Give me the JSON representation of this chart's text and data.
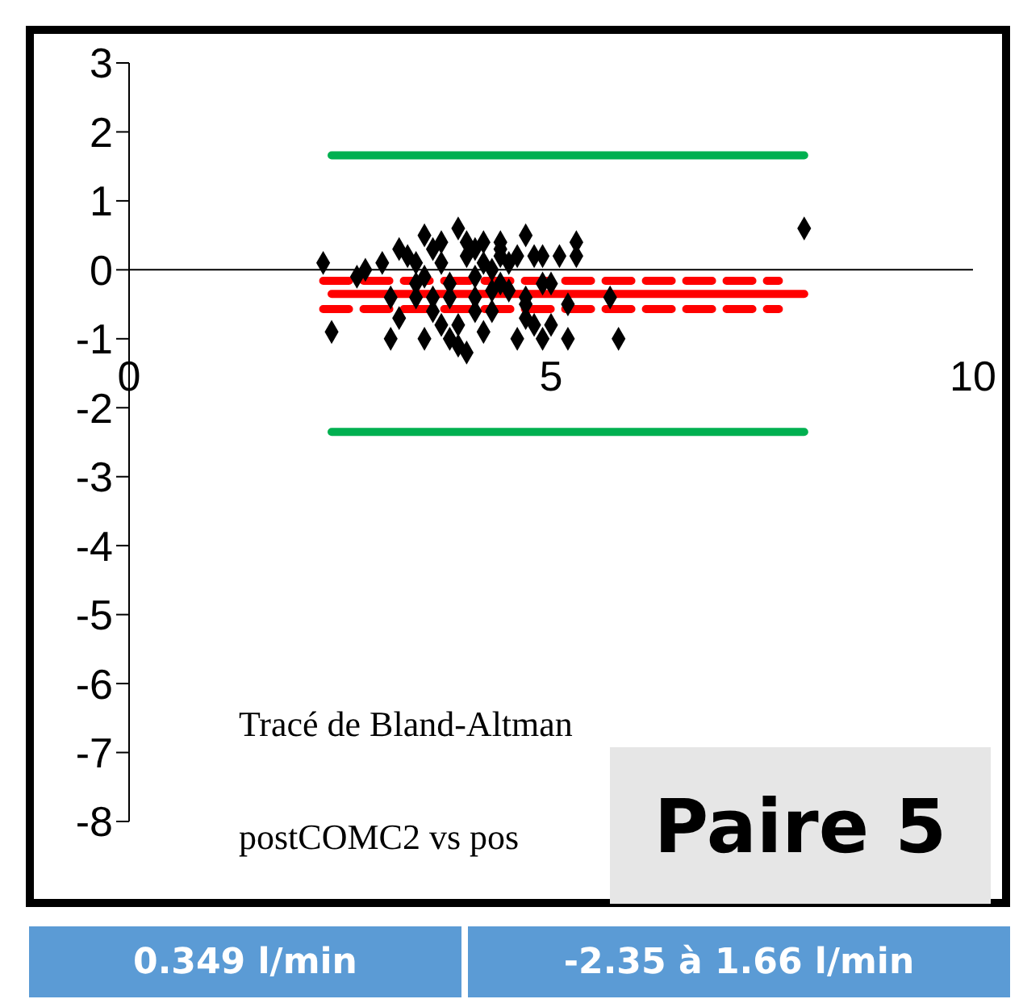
{
  "chart_data": {
    "type": "scatter",
    "annotations": [
      "Tracé de Bland-Altman",
      "postCOMC2 vs pos",
      "Paire 5",
      "0.349 l/min",
      "-2.35 à 1.66 l/min"
    ],
    "xlim": [
      0,
      10
    ],
    "xticks": [
      0,
      5,
      10
    ],
    "ylim": [
      -8,
      3
    ],
    "yticks": [
      3,
      2,
      1,
      0,
      -1,
      -2,
      -3,
      -4,
      -5,
      -6,
      -7,
      -8
    ],
    "series": [
      {
        "type": "line",
        "color": "#00b050",
        "line_style": "solid",
        "marker": "none",
        "x": [
          2.4,
          8.0
        ],
        "values": [
          1.66,
          1.66
        ]
      },
      {
        "type": "line",
        "color": "#00b050",
        "line_style": "solid",
        "marker": "none",
        "x": [
          2.4,
          8.0
        ],
        "values": [
          -2.35,
          -2.35
        ]
      },
      {
        "type": "line",
        "color": "#ff0000",
        "line_style": "solid",
        "marker": "none",
        "x": [
          2.4,
          8.0
        ],
        "values": [
          -0.35,
          -0.35
        ]
      },
      {
        "type": "line",
        "color": "#ff0000",
        "line_style": "dashed",
        "marker": "none",
        "x": [
          2.3,
          7.7
        ],
        "values": [
          -0.16,
          -0.16
        ]
      },
      {
        "type": "line",
        "color": "#ff0000",
        "line_style": "dashed",
        "marker": "none",
        "x": [
          2.3,
          7.7
        ],
        "values": [
          -0.57,
          -0.57
        ]
      },
      {
        "type": "scatter",
        "color": "#000000",
        "marker": "diamond",
        "x": [
          2.3,
          2.4,
          2.7,
          2.8,
          3.0,
          3.1,
          3.1,
          3.2,
          3.2,
          3.3,
          3.4,
          3.4,
          3.4,
          3.5,
          3.5,
          3.5,
          3.6,
          3.6,
          3.6,
          3.7,
          3.7,
          3.7,
          3.8,
          3.8,
          3.8,
          3.9,
          3.9,
          3.9,
          4.0,
          4.0,
          4.0,
          4.1,
          4.1,
          4.1,
          4.1,
          4.2,
          4.2,
          4.2,
          4.3,
          4.3,
          4.3,
          4.4,
          4.4,
          4.4,
          4.4,
          4.5,
          4.5,
          4.6,
          4.6,
          4.7,
          4.7,
          4.7,
          4.7,
          4.8,
          4.8,
          4.9,
          4.9,
          4.9,
          5.0,
          5.0,
          5.1,
          5.2,
          5.2,
          5.3,
          5.3,
          5.7,
          5.8,
          8.0
        ],
        "values": [
          0.1,
          -0.9,
          -0.1,
          0.0,
          0.1,
          -0.4,
          -1.0,
          -0.7,
          0.3,
          0.2,
          -0.2,
          0.1,
          -0.4,
          -1.0,
          0.5,
          -0.1,
          0.3,
          -0.4,
          -0.6,
          0.1,
          0.4,
          -0.8,
          -0.2,
          -1.0,
          -0.4,
          -1.1,
          0.6,
          -0.8,
          -1.2,
          0.2,
          0.4,
          -0.1,
          -0.6,
          -0.4,
          0.3,
          -0.9,
          0.4,
          0.1,
          -0.3,
          -0.6,
          0.0,
          0.4,
          0.2,
          -0.2,
          0.3,
          -0.3,
          0.1,
          -1.0,
          0.2,
          0.5,
          -0.5,
          -0.7,
          -0.4,
          0.2,
          -0.8,
          -0.2,
          -1.0,
          0.2,
          -0.2,
          -0.8,
          0.2,
          -0.5,
          -1.0,
          0.2,
          0.4,
          -0.4,
          -1.0,
          0.6
        ]
      }
    ]
  }
}
